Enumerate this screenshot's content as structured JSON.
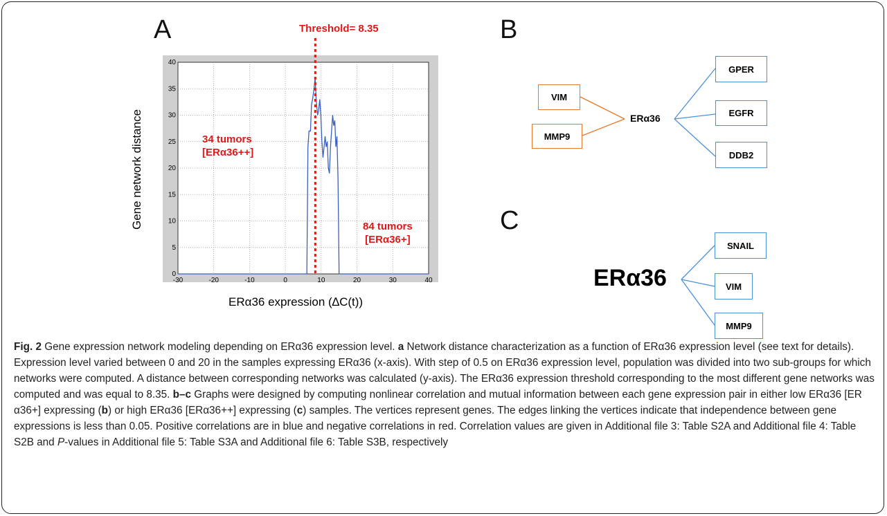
{
  "panels": {
    "a_letter": "A",
    "b_letter": "B",
    "c_letter": "C"
  },
  "chart_data": {
    "type": "line",
    "threshold_label": "Threshold= 8.35",
    "threshold_x": 8.35,
    "xlabel": "ERα36 expression (∆C(t))",
    "ylabel": "Gene network distance",
    "xlim": [
      -30,
      40
    ],
    "ylim": [
      0,
      40
    ],
    "x_ticks": [
      -30,
      -20,
      -10,
      0,
      10,
      20,
      30,
      40
    ],
    "y_ticks": [
      0,
      5,
      10,
      15,
      20,
      25,
      30,
      35,
      40
    ],
    "grid": true,
    "color_line": "#3b5fc0",
    "color_threshold": "#e01818",
    "series": [
      {
        "x": [
          -30,
          6.0,
          6.3,
          6.6,
          7.0,
          7.3,
          7.6,
          8.0,
          8.3,
          8.6,
          9.0,
          9.3,
          9.6,
          9.9,
          10.2,
          10.5,
          10.8,
          11.1,
          11.4,
          11.7,
          12.0,
          12.3,
          12.6,
          12.9,
          13.2,
          13.5,
          13.8,
          14.1,
          14.4,
          14.7,
          15.0,
          15.3,
          40
        ],
        "values": [
          0,
          0,
          24,
          27,
          27,
          32,
          33,
          35,
          37,
          33,
          30,
          31,
          33,
          30,
          25,
          22,
          24,
          26,
          24,
          25,
          20,
          19,
          24,
          27,
          30,
          28,
          29,
          24,
          26,
          18,
          0,
          0,
          0
        ]
      }
    ],
    "annotations": [
      {
        "line1": "34 tumors",
        "line2": "[ERα36++]"
      },
      {
        "line1": "84 tumors",
        "line2": "[ERα36+]"
      }
    ]
  },
  "network_b": {
    "center": "ERα36",
    "left_nodes": [
      "VIM",
      "MMP9"
    ],
    "right_nodes": [
      "GPER",
      "EGFR",
      "DDB2"
    ],
    "color_positive": "#4a90d9",
    "color_negative": "#e8782a"
  },
  "network_c": {
    "center": "ERα36",
    "right_nodes": [
      "SNAIL",
      "VIM",
      "MMP9"
    ]
  },
  "caption": {
    "fig_label": "Fig. 2",
    "title": " Gene expression network modeling depending on ERα36 expression level. ",
    "a": "a",
    "t1": " Network distance characterization as a function of ERα36 expression level (see text for details). Expression level varied between 0 and 20 in the samples expressing ERα36 (x-axis). With step of 0.5 on ERα36 expression level, population was divided into two sub-groups for which networks were computed. A distance between corresponding networks was calculated (y-axis). The ERα36 expression threshold corresponding to the most different gene networks was computed and was equal to 8.35. ",
    "bc": "b–c",
    "t2": " Graphs were designed by computing nonlinear correlation and mutual information between each gene expression pair in either low ERα36 [ER α36+] expressing (",
    "b": "b",
    "t3": ") or high ERα36 [ERα36++] expressing (",
    "c": "c",
    "t4": ") samples. The vertices represent genes. The edges linking the vertices indicate that independence between gene expressions is less than 0.05. Positive correlations are in blue and negative correlations in red. Correlation values are given in Additional file 3: Table S2A and Additional file 4: Table S2B and ",
    "p": "P",
    "t5": "-values in Additional file 5: Table S3A and Additional file 6: Table S3B, respectively"
  }
}
